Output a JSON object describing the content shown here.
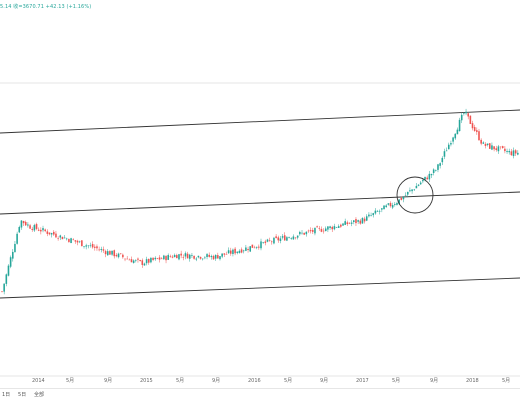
{
  "header": {
    "ohlc_text": "5.14 收=3670.71 +42.13 (+1.16%)"
  },
  "timeframes": {
    "items": [
      "1日",
      "5日",
      "全部"
    ]
  },
  "colors": {
    "up": "#26a69a",
    "down": "#ef5350",
    "line": "#333333",
    "axis": "#666666"
  },
  "chart_data": {
    "type": "candlestick",
    "title": "",
    "x_ticks": [
      "2014",
      "5月",
      "9月",
      "2015",
      "5月",
      "9月",
      "2016",
      "5月",
      "9月",
      "2017",
      "5月",
      "9月",
      "2018",
      "5月"
    ],
    "y_axis": {
      "visible": false
    },
    "grid": false,
    "series": [
      {
        "date": "2013-10",
        "close_level": 0.1
      },
      {
        "date": "2013-12",
        "close_level": 0.45
      },
      {
        "date": "2014-01",
        "close_level": 0.42
      },
      {
        "date": "2014-05",
        "close_level": 0.36
      },
      {
        "date": "2014-09",
        "close_level": 0.3
      },
      {
        "date": "2015-01",
        "close_level": 0.24
      },
      {
        "date": "2015-05",
        "close_level": 0.28
      },
      {
        "date": "2015-09",
        "close_level": 0.27
      },
      {
        "date": "2016-01",
        "close_level": 0.32
      },
      {
        "date": "2016-05",
        "close_level": 0.37
      },
      {
        "date": "2016-09",
        "close_level": 0.41
      },
      {
        "date": "2017-01",
        "close_level": 0.45
      },
      {
        "date": "2017-05",
        "close_level": 0.55
      },
      {
        "date": "2017-09",
        "close_level": 0.7
      },
      {
        "date": "2017-12",
        "close_level": 0.98
      },
      {
        "date": "2018-02",
        "close_level": 0.82
      },
      {
        "date": "2018-05",
        "close_level": 0.78
      }
    ],
    "annotations": [
      {
        "type": "trend-channel-lines",
        "count": 3
      },
      {
        "type": "circle",
        "near_date": "2017-08"
      }
    ]
  }
}
